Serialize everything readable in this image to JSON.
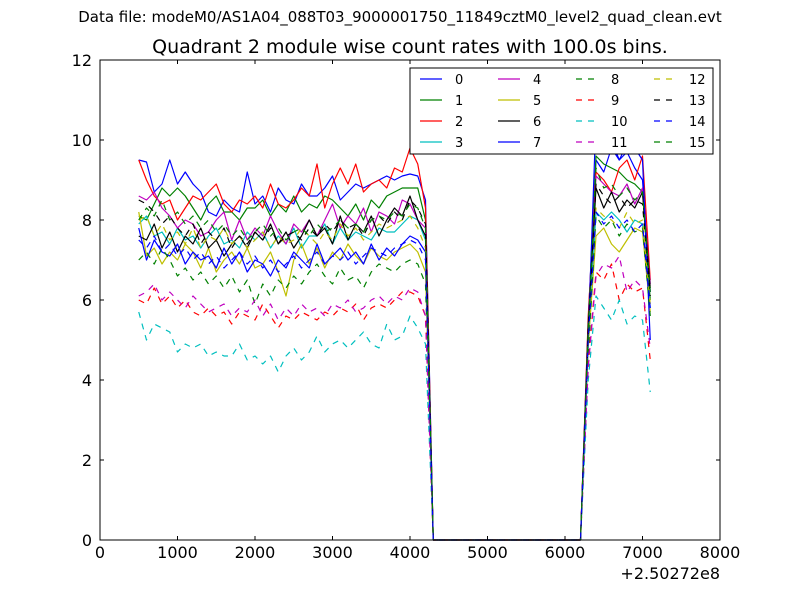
{
  "figure": {
    "supertitle": "Data file: modeM0/AS1A04_088T03_9000001750_11849cztM0_level2_quad_clean.evt"
  },
  "chart_data": {
    "type": "line",
    "title": "Quadrant 2 module wise count rates with 100.0s bins.",
    "xlabel": "",
    "ylabel": "",
    "x_offset_label": "+2.50272e8",
    "xlim": [
      0,
      8000
    ],
    "ylim": [
      0,
      12
    ],
    "x_ticks": [
      0,
      1000,
      2000,
      3000,
      4000,
      5000,
      6000,
      7000,
      8000
    ],
    "y_ticks": [
      0,
      2,
      4,
      6,
      8,
      10,
      12
    ],
    "grid": false,
    "legend_position": "top-right",
    "legend_columns": 4,
    "x": [
      500,
      600,
      700,
      800,
      900,
      1000,
      1100,
      1200,
      1300,
      1400,
      1500,
      1600,
      1700,
      1800,
      1900,
      2000,
      2100,
      2200,
      2300,
      2400,
      2500,
      2600,
      2700,
      2800,
      2900,
      3000,
      3100,
      3200,
      3300,
      3400,
      3500,
      3600,
      3700,
      3800,
      3900,
      4000,
      4100,
      4200,
      4300,
      4400,
      4500,
      4600,
      4700,
      4800,
      4900,
      5000,
      5100,
      5200,
      5300,
      5400,
      5500,
      5600,
      5700,
      5800,
      5900,
      6000,
      6100,
      6200,
      6300,
      6400,
      6500,
      6600,
      6700,
      6800,
      6900,
      7000,
      7100
    ],
    "series": [
      {
        "name": "0",
        "color": "#0000ff",
        "dash": "solid",
        "values": [
          9.5,
          9.45,
          8.7,
          8.9,
          9.5,
          8.9,
          9.2,
          8.9,
          8.7,
          8.2,
          8.1,
          8.5,
          8.3,
          8.2,
          9.2,
          8.4,
          8.6,
          8.2,
          8.8,
          8.5,
          8.4,
          8.9,
          8.6,
          8.6,
          8.8,
          9.1,
          8.5,
          8.7,
          8.9,
          8.8,
          8.9,
          9.0,
          9.1,
          9.0,
          9.1,
          9.15,
          9.1,
          8.5,
          0,
          0,
          0,
          0,
          0,
          0,
          0,
          0,
          0,
          0,
          0,
          0,
          0,
          0,
          0,
          0,
          0,
          0,
          0,
          0,
          5.5,
          9.5,
          9.2,
          9.8,
          9.5,
          9.7,
          9.3,
          9.0,
          6.2
        ]
      },
      {
        "name": "1",
        "color": "#008000",
        "dash": "solid",
        "values": [
          8.1,
          8.0,
          8.4,
          8.8,
          8.6,
          8.8,
          8.6,
          8.3,
          8.0,
          8.4,
          8.6,
          8.2,
          8.2,
          8.0,
          8.3,
          8.3,
          8.5,
          8.1,
          8.4,
          8.2,
          8.6,
          8.2,
          8.4,
          8.3,
          8.6,
          8.5,
          8.3,
          8.1,
          8.4,
          8.0,
          8.5,
          8.3,
          8.6,
          8.7,
          8.8,
          8.8,
          8.8,
          8.0,
          0,
          0,
          0,
          0,
          0,
          0,
          0,
          0,
          0,
          0,
          0,
          0,
          0,
          0,
          0,
          0,
          0,
          0,
          0,
          0,
          5.2,
          9.6,
          9.4,
          9.3,
          9.2,
          9.0,
          8.9,
          8.7,
          6.0
        ]
      },
      {
        "name": "2",
        "color": "#ff0000",
        "dash": "solid",
        "values": [
          9.5,
          9.0,
          8.6,
          8.4,
          8.5,
          8.0,
          8.3,
          8.6,
          8.5,
          8.7,
          8.9,
          8.4,
          8.2,
          8.5,
          8.4,
          8.6,
          8.3,
          8.9,
          8.4,
          8.3,
          8.5,
          8.8,
          8.6,
          9.4,
          8.3,
          8.9,
          9.3,
          8.9,
          9.4,
          8.7,
          8.9,
          9.0,
          8.8,
          9.3,
          9.2,
          9.8,
          9.4,
          8.3,
          0,
          0,
          0,
          0,
          0,
          0,
          0,
          0,
          0,
          0,
          0,
          0,
          0,
          0,
          0,
          0,
          0,
          0,
          0,
          0,
          5.6,
          9.2,
          9.0,
          8.7,
          9.3,
          9.5,
          9.0,
          9.6,
          6.5
        ]
      },
      {
        "name": "3",
        "color": "#00bfbf",
        "dash": "solid",
        "values": [
          7.9,
          8.1,
          7.6,
          7.7,
          7.4,
          7.8,
          7.5,
          7.6,
          7.3,
          7.6,
          7.8,
          7.4,
          7.5,
          7.3,
          7.7,
          7.5,
          7.7,
          7.3,
          7.6,
          7.4,
          7.8,
          7.3,
          7.6,
          7.6,
          7.9,
          7.4,
          7.8,
          7.5,
          7.7,
          7.6,
          7.5,
          7.8,
          7.7,
          7.7,
          7.9,
          8.1,
          8.0,
          7.5,
          0,
          0,
          0,
          0,
          0,
          0,
          0,
          0,
          0,
          0,
          0,
          0,
          0,
          0,
          0,
          0,
          0,
          0,
          0,
          0,
          4.8,
          8.2,
          8.0,
          8.2,
          8.0,
          7.7,
          8.0,
          7.9,
          5.8
        ]
      },
      {
        "name": "4",
        "color": "#bf00bf",
        "dash": "solid",
        "values": [
          8.6,
          8.5,
          8.7,
          8.3,
          8.1,
          7.8,
          8.0,
          7.9,
          7.6,
          7.7,
          8.0,
          8.2,
          7.5,
          8.0,
          7.5,
          7.8,
          7.6,
          8.1,
          7.7,
          7.4,
          7.9,
          7.7,
          8.0,
          7.6,
          8.0,
          8.4,
          7.8,
          8.1,
          7.9,
          8.3,
          7.7,
          8.2,
          8.1,
          7.9,
          8.5,
          8.4,
          8.0,
          7.8,
          0,
          0,
          0,
          0,
          0,
          0,
          0,
          0,
          0,
          0,
          0,
          0,
          0,
          0,
          0,
          0,
          0,
          0,
          0,
          0,
          5.3,
          9.1,
          8.9,
          8.7,
          8.6,
          8.9,
          8.4,
          8.8,
          6.4
        ]
      },
      {
        "name": "5",
        "color": "#bfbf00",
        "dash": "solid",
        "values": [
          8.2,
          7.1,
          7.3,
          6.9,
          7.2,
          7.0,
          7.4,
          7.2,
          6.8,
          7.3,
          6.7,
          7.0,
          7.2,
          6.9,
          7.3,
          6.8,
          6.9,
          7.2,
          6.7,
          6.1,
          7.0,
          7.4,
          6.9,
          7.3,
          6.8,
          7.2,
          7.0,
          7.4,
          7.1,
          6.9,
          7.3,
          7.1,
          7.0,
          7.2,
          7.3,
          7.4,
          7.2,
          6.7,
          0,
          0,
          0,
          0,
          0,
          0,
          0,
          0,
          0,
          0,
          0,
          0,
          0,
          0,
          0,
          0,
          0,
          0,
          0,
          0,
          4.9,
          7.6,
          7.8,
          7.4,
          7.2,
          7.5,
          7.8,
          7.7,
          5.7
        ]
      },
      {
        "name": "6",
        "color": "#000000",
        "dash": "solid",
        "values": [
          7.6,
          7.5,
          7.9,
          7.3,
          7.7,
          7.2,
          7.6,
          7.4,
          7.8,
          7.3,
          7.5,
          7.1,
          7.4,
          7.6,
          7.3,
          7.7,
          7.5,
          7.9,
          7.4,
          7.7,
          7.3,
          7.6,
          8.0,
          7.6,
          7.8,
          7.4,
          8.1,
          7.5,
          7.9,
          7.7,
          8.1,
          7.6,
          8.0,
          8.3,
          8.1,
          8.6,
          8.0,
          7.6,
          0,
          0,
          0,
          0,
          0,
          0,
          0,
          0,
          0,
          0,
          0,
          0,
          0,
          0,
          0,
          0,
          0,
          0,
          0,
          0,
          5.4,
          8.8,
          8.3,
          8.7,
          8.2,
          8.5,
          8.3,
          8.7,
          6.3
        ]
      },
      {
        "name": "7",
        "color": "#0000ff",
        "dash": "solid",
        "values": [
          7.8,
          7.0,
          7.5,
          7.2,
          7.1,
          7.4,
          6.9,
          7.2,
          7.0,
          7.1,
          6.8,
          7.3,
          6.9,
          7.2,
          6.7,
          7.0,
          6.9,
          6.6,
          7.0,
          6.8,
          7.2,
          7.0,
          6.8,
          7.4,
          6.9,
          7.1,
          7.3,
          7.0,
          7.2,
          6.9,
          7.4,
          7.0,
          7.3,
          7.1,
          7.4,
          7.6,
          7.5,
          7.2,
          0,
          0,
          0,
          0,
          0,
          0,
          0,
          0,
          0,
          0,
          0,
          0,
          0,
          0,
          0,
          0,
          0,
          0,
          0,
          0,
          5.1,
          10.55,
          10.3,
          10.0,
          9.5,
          9.9,
          9.8,
          9.5,
          5.0
        ]
      },
      {
        "name": "8",
        "color": "#008000",
        "dash": "dashed",
        "values": [
          7.0,
          7.2,
          6.9,
          7.3,
          7.0,
          6.6,
          6.8,
          6.5,
          6.7,
          6.4,
          6.6,
          6.3,
          6.6,
          6.2,
          6.5,
          5.9,
          6.4,
          6.1,
          6.5,
          6.3,
          6.6,
          6.4,
          6.7,
          6.9,
          6.6,
          6.4,
          6.8,
          6.5,
          6.6,
          6.3,
          6.7,
          6.9,
          6.8,
          6.7,
          6.9,
          7.0,
          6.9,
          6.4,
          0,
          0,
          0,
          0,
          0,
          0,
          0,
          0,
          0,
          0,
          0,
          0,
          0,
          0,
          0,
          0,
          0,
          0,
          0,
          0,
          4.6,
          8.1,
          7.8,
          8.0,
          7.6,
          7.9,
          7.7,
          7.8,
          5.6
        ]
      },
      {
        "name": "9",
        "color": "#ff0000",
        "dash": "dashed",
        "values": [
          6.0,
          5.9,
          6.3,
          5.9,
          6.1,
          5.8,
          6.0,
          5.7,
          5.6,
          5.8,
          5.6,
          5.7,
          5.4,
          5.7,
          5.6,
          5.5,
          5.9,
          5.6,
          5.3,
          5.6,
          5.5,
          5.7,
          5.6,
          5.5,
          5.7,
          5.6,
          5.8,
          5.7,
          5.9,
          5.5,
          5.8,
          5.9,
          5.8,
          6.0,
          6.2,
          6.2,
          6.1,
          5.6,
          0,
          0,
          0,
          0,
          0,
          0,
          0,
          0,
          0,
          0,
          0,
          0,
          0,
          0,
          0,
          0,
          0,
          0,
          0,
          0,
          4.4,
          6.7,
          6.5,
          6.9,
          6.0,
          6.4,
          6.2,
          6.3,
          4.5
        ]
      },
      {
        "name": "10",
        "color": "#00bfbf",
        "dash": "dashed",
        "values": [
          5.7,
          5.0,
          5.4,
          5.3,
          5.2,
          4.7,
          4.9,
          4.8,
          4.9,
          4.6,
          4.7,
          4.6,
          4.6,
          4.9,
          4.5,
          4.6,
          4.4,
          4.6,
          4.2,
          4.6,
          4.8,
          4.5,
          4.7,
          5.1,
          4.7,
          4.9,
          5.0,
          4.8,
          5.0,
          5.2,
          4.9,
          4.8,
          5.4,
          5.0,
          5.1,
          5.6,
          5.3,
          4.9,
          0,
          0,
          0,
          0,
          0,
          0,
          0,
          0,
          0,
          0,
          0,
          0,
          0,
          0,
          0,
          0,
          0,
          0,
          0,
          0,
          4.0,
          6.1,
          5.8,
          5.5,
          6.0,
          5.4,
          5.6,
          5.5,
          3.7
        ]
      },
      {
        "name": "11",
        "color": "#bf00bf",
        "dash": "dashed",
        "values": [
          6.1,
          6.2,
          6.4,
          6.0,
          6.2,
          6.0,
          5.8,
          6.1,
          5.9,
          5.7,
          5.8,
          5.9,
          5.6,
          5.8,
          5.7,
          6.0,
          5.6,
          5.9,
          5.5,
          5.8,
          5.6,
          5.9,
          5.7,
          5.8,
          5.6,
          5.9,
          5.8,
          6.0,
          5.7,
          5.8,
          6.0,
          6.1,
          5.9,
          6.1,
          6.0,
          6.3,
          6.2,
          5.6,
          0,
          0,
          0,
          0,
          0,
          0,
          0,
          0,
          0,
          0,
          0,
          0,
          0,
          0,
          0,
          0,
          0,
          0,
          0,
          0,
          4.3,
          6.6,
          6.9,
          6.8,
          7.1,
          6.2,
          6.5,
          6.3,
          4.8
        ]
      },
      {
        "name": "12",
        "color": "#bfbf00",
        "dash": "dashed",
        "values": [
          8.0,
          8.1,
          7.6,
          7.9,
          7.5,
          7.7,
          7.4,
          7.8,
          7.3,
          7.6,
          7.5,
          7.8,
          7.4,
          7.6,
          7.3,
          7.5,
          7.7,
          7.3,
          7.6,
          7.4,
          7.5,
          7.8,
          7.6,
          7.4,
          7.7,
          7.5,
          7.9,
          7.6,
          7.8,
          7.5,
          7.7,
          7.9,
          7.8,
          7.9,
          8.0,
          8.1,
          7.8,
          7.3,
          0,
          0,
          0,
          0,
          0,
          0,
          0,
          0,
          0,
          0,
          0,
          0,
          0,
          0,
          0,
          0,
          0,
          0,
          0,
          0,
          5.0,
          8.3,
          8.1,
          8.0,
          7.8,
          8.2,
          7.9,
          8.0,
          5.9
        ]
      },
      {
        "name": "13",
        "color": "#000000",
        "dash": "dashed",
        "values": [
          8.5,
          8.4,
          8.2,
          7.9,
          8.1,
          7.8,
          7.6,
          7.9,
          7.4,
          7.7,
          7.5,
          7.8,
          7.3,
          7.6,
          7.4,
          7.7,
          7.5,
          7.8,
          7.4,
          7.6,
          7.7,
          7.5,
          7.8,
          7.6,
          7.9,
          7.7,
          8.0,
          7.8,
          7.9,
          7.6,
          8.0,
          8.1,
          7.9,
          8.2,
          8.0,
          8.5,
          8.3,
          7.9,
          0,
          0,
          0,
          0,
          0,
          0,
          0,
          0,
          0,
          0,
          0,
          0,
          0,
          0,
          0,
          0,
          0,
          0,
          0,
          0,
          5.2,
          8.9,
          8.6,
          8.4,
          8.6,
          8.3,
          8.5,
          8.4,
          6.1
        ]
      },
      {
        "name": "14",
        "color": "#0000ff",
        "dash": "dashed",
        "values": [
          7.5,
          7.3,
          7.6,
          7.2,
          7.4,
          7.1,
          7.3,
          7.0,
          7.2,
          6.9,
          7.1,
          6.8,
          7.0,
          7.2,
          6.9,
          7.1,
          6.8,
          7.0,
          6.7,
          6.9,
          7.1,
          6.8,
          7.0,
          7.2,
          6.9,
          7.1,
          7.0,
          7.2,
          6.9,
          7.1,
          7.3,
          7.2,
          7.1,
          7.3,
          7.4,
          7.5,
          7.4,
          7.0,
          0,
          0,
          0,
          0,
          0,
          0,
          0,
          0,
          0,
          0,
          0,
          0,
          0,
          0,
          0,
          0,
          0,
          0,
          0,
          0,
          5.0,
          8.2,
          7.9,
          8.1,
          7.8,
          8.0,
          7.7,
          7.9,
          5.8
        ]
      },
      {
        "name": "15",
        "color": "#008000",
        "dash": "dashed",
        "values": [
          8.0,
          8.3,
          8.1,
          8.5,
          8.0,
          8.2,
          7.9,
          8.1,
          7.8,
          8.0,
          7.7,
          7.9,
          7.6,
          7.8,
          7.5,
          7.7,
          7.9,
          7.6,
          7.8,
          7.5,
          7.7,
          7.8,
          7.6,
          7.9,
          7.7,
          7.8,
          8.0,
          7.8,
          7.9,
          7.7,
          8.0,
          8.1,
          8.0,
          8.2,
          8.1,
          8.4,
          8.3,
          7.8,
          0,
          0,
          0,
          0,
          0,
          0,
          0,
          0,
          0,
          0,
          0,
          0,
          0,
          0,
          0,
          0,
          0,
          0,
          0,
          0,
          5.3,
          9.3,
          8.8,
          8.9,
          8.6,
          8.8,
          8.5,
          8.7,
          6.2
        ]
      }
    ]
  }
}
